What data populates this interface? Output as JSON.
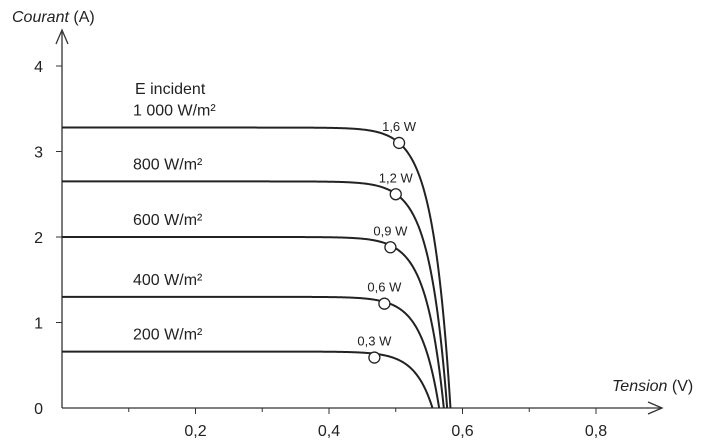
{
  "chart_data": {
    "type": "line",
    "xlabel": {
      "italic": "Tension",
      "unit": " (V)"
    },
    "ylabel": {
      "italic": "Courant",
      "unit": " (A)"
    },
    "xlim": [
      0,
      0.8
    ],
    "ylim": [
      0,
      4
    ],
    "x_tick_labels": [
      {
        "value": 0.2,
        "label": "0,2"
      },
      {
        "value": 0.4,
        "label": "0,4"
      },
      {
        "value": 0.6,
        "label": "0,6"
      },
      {
        "value": 0.8,
        "label": "0,8"
      }
    ],
    "y_tick_labels": [
      {
        "value": 0,
        "label": "0"
      },
      {
        "value": 1,
        "label": "1"
      },
      {
        "value": 2,
        "label": "2"
      },
      {
        "value": 3,
        "label": "3"
      },
      {
        "value": 4,
        "label": "4"
      }
    ],
    "legend_title": "E incident",
    "grid": false,
    "series": [
      {
        "name": "1 000 W/m²",
        "isc": 3.28,
        "voc": 0.582,
        "mpp": {
          "x": 0.505,
          "y": 3.1,
          "label": "1,6 W"
        }
      },
      {
        "name": "800 W/m²",
        "isc": 2.65,
        "voc": 0.577,
        "mpp": {
          "x": 0.5,
          "y": 2.5,
          "label": "1,2 W"
        }
      },
      {
        "name": "600 W/m²",
        "isc": 2.0,
        "voc": 0.572,
        "mpp": {
          "x": 0.492,
          "y": 1.88,
          "label": "0,9 W"
        }
      },
      {
        "name": "400 W/m²",
        "isc": 1.3,
        "voc": 0.565,
        "mpp": {
          "x": 0.483,
          "y": 1.22,
          "label": "0,6 W"
        }
      },
      {
        "name": "200 W/m²",
        "isc": 0.66,
        "voc": 0.555,
        "mpp": {
          "x": 0.468,
          "y": 0.59,
          "label": "0,3 W"
        }
      }
    ]
  }
}
